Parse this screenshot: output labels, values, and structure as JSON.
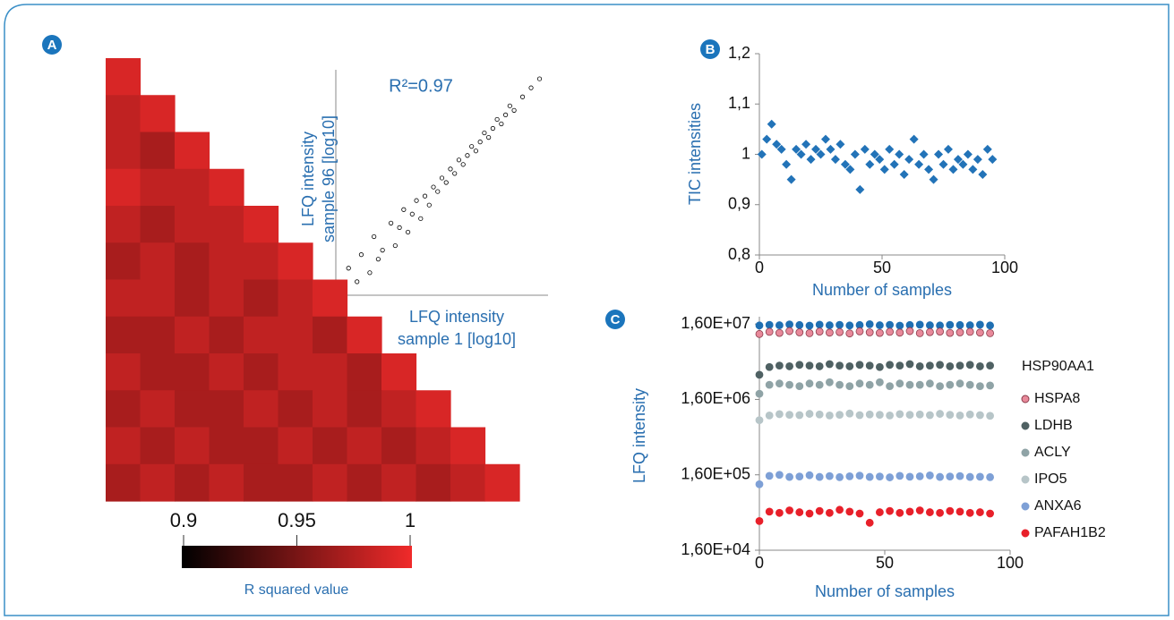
{
  "chart_data": [
    {
      "type": "heatmap",
      "panel": "A",
      "values": [
        [
          0.99
        ],
        [
          0.98,
          0.99
        ],
        [
          0.98,
          0.97,
          0.99
        ],
        [
          0.99,
          0.98,
          0.98,
          0.99
        ],
        [
          0.98,
          0.97,
          0.98,
          0.98,
          0.99
        ],
        [
          0.97,
          0.98,
          0.97,
          0.98,
          0.98,
          0.99
        ],
        [
          0.98,
          0.98,
          0.97,
          0.98,
          0.97,
          0.98,
          0.99
        ],
        [
          0.97,
          0.97,
          0.98,
          0.97,
          0.98,
          0.98,
          0.97,
          0.99
        ],
        [
          0.98,
          0.97,
          0.97,
          0.98,
          0.97,
          0.98,
          0.98,
          0.97,
          0.99
        ],
        [
          0.97,
          0.98,
          0.97,
          0.97,
          0.98,
          0.97,
          0.98,
          0.97,
          0.98,
          0.99
        ],
        [
          0.98,
          0.97,
          0.98,
          0.97,
          0.97,
          0.98,
          0.97,
          0.98,
          0.97,
          0.98,
          0.99
        ],
        [
          0.97,
          0.98,
          0.97,
          0.98,
          0.97,
          0.97,
          0.98,
          0.97,
          0.98,
          0.97,
          0.98,
          0.99
        ]
      ],
      "colormap": [
        "#000000",
        "#f02a2a"
      ],
      "zlim": [
        0.9,
        1
      ],
      "zticks": [
        0.9,
        0.95,
        1
      ],
      "colorbar_label": "R squared value"
    },
    {
      "type": "scatter",
      "annotation": "R²=0.97",
      "xlabel": [
        "LFQ intensity",
        "sample 1 [log10]"
      ],
      "ylabel": [
        "LFQ intensity",
        "sample 96 [log10]"
      ],
      "x": [
        5.8,
        6.0,
        6.1,
        6.3,
        6.4,
        6.5,
        6.6,
        6.8,
        6.9,
        7.0,
        7.1,
        7.2,
        7.3,
        7.4,
        7.5,
        7.6,
        7.7,
        7.8,
        7.9,
        8.0,
        8.1,
        8.2,
        8.3,
        8.4,
        8.5,
        8.6,
        8.7,
        8.8,
        8.9,
        9.0,
        9.1,
        9.2,
        9.3,
        9.4,
        9.5,
        9.6,
        9.7,
        9.9,
        10.1,
        10.3
      ],
      "y": [
        6.1,
        5.8,
        6.4,
        6.0,
        6.8,
        6.3,
        6.5,
        7.1,
        6.6,
        7.0,
        7.4,
        6.9,
        7.3,
        7.6,
        7.2,
        7.7,
        7.5,
        7.9,
        7.8,
        8.1,
        8.0,
        8.3,
        8.2,
        8.5,
        8.4,
        8.6,
        8.8,
        8.7,
        8.9,
        9.1,
        9.0,
        9.2,
        9.4,
        9.3,
        9.5,
        9.7,
        9.6,
        9.9,
        10.1,
        10.3
      ],
      "xlim": [
        5.5,
        10.5
      ],
      "ylim": [
        5.5,
        10.5
      ],
      "color": "#000000",
      "marker": "circle-open"
    },
    {
      "type": "scatter",
      "panel": "B",
      "ylabel": "TIC intensities",
      "xlabel": "Number of samples",
      "x": [
        1,
        3,
        5,
        7,
        9,
        11,
        13,
        15,
        17,
        19,
        21,
        23,
        25,
        27,
        29,
        31,
        33,
        35,
        37,
        39,
        41,
        43,
        45,
        47,
        49,
        51,
        53,
        55,
        57,
        59,
        61,
        63,
        65,
        67,
        69,
        71,
        73,
        75,
        77,
        79,
        81,
        83,
        85,
        87,
        89,
        91,
        93,
        95
      ],
      "y": [
        1.0,
        1.03,
        1.06,
        1.02,
        1.01,
        0.98,
        0.95,
        1.01,
        1.0,
        1.02,
        0.99,
        1.01,
        1.0,
        1.03,
        1.01,
        0.99,
        1.02,
        0.98,
        0.97,
        1.0,
        0.93,
        1.01,
        0.98,
        1.0,
        0.99,
        0.97,
        1.01,
        0.98,
        1.0,
        0.96,
        0.99,
        1.03,
        0.98,
        1.0,
        0.97,
        0.95,
        1.0,
        0.98,
        1.01,
        0.97,
        0.99,
        0.98,
        1.0,
        0.97,
        0.99,
        0.96,
        1.01,
        0.99
      ],
      "xlim": [
        0,
        100
      ],
      "xticks": [
        0,
        50,
        100
      ],
      "ylim": [
        0.8,
        1.2
      ],
      "yticks": [
        {
          "value": 0.8,
          "label": "0,8"
        },
        {
          "value": 0.9,
          "label": "0,9"
        },
        1,
        {
          "value": 1.1,
          "label": "1,1"
        },
        {
          "value": 1.2,
          "label": "1,2"
        }
      ],
      "color": "#2273b8",
      "marker": "diamond"
    },
    {
      "type": "scatter",
      "panel": "C",
      "ylabel": "LFQ intensity",
      "xlabel": "Number of samples",
      "yscale": "log",
      "x": [
        0,
        4,
        8,
        12,
        16,
        20,
        24,
        28,
        32,
        36,
        40,
        44,
        48,
        52,
        56,
        60,
        64,
        68,
        72,
        76,
        80,
        84,
        88,
        92
      ],
      "xlim": [
        0,
        100
      ],
      "xticks": [
        0,
        50,
        100
      ],
      "ylim": [
        16000,
        20000000
      ],
      "yticks": [
        {
          "value": 16000,
          "label": "1,60E+04"
        },
        {
          "value": 160000,
          "label": "1,60E+05"
        },
        {
          "value": 1600000,
          "label": "1,60E+06"
        },
        {
          "value": 16000000,
          "label": "1,60E+07"
        }
      ],
      "marker": "circle",
      "series": [
        {
          "name": "HSP90AA1",
          "color": "#1f6fb2",
          "values": [
            15300000,
            15600000,
            15400000,
            15800000,
            15500000,
            15200000,
            15700000,
            15400000,
            15600000,
            15300000,
            15500000,
            15900000,
            15400000,
            15600000,
            15200000,
            15500000,
            15700000,
            15400000,
            15300000,
            15600000,
            15500000,
            15400000,
            15700000,
            15300000
          ]
        },
        {
          "name": "HSPA8",
          "color": "#e8899a",
          "edgecolor": "#8a3a4a",
          "values": [
            11800000,
            12600000,
            12200000,
            12900000,
            12400000,
            12100000,
            12700000,
            12300000,
            12500000,
            12000000,
            12800000,
            12400000,
            12200000,
            12600000,
            12300000,
            12900000,
            12100000,
            12500000,
            12700000,
            12200000,
            12400000,
            12600000,
            12300000,
            12100000
          ]
        },
        {
          "name": "LDHB",
          "color": "#4f6163",
          "values": [
            3400000,
            4300000,
            4500000,
            4400000,
            4600000,
            4500000,
            4400000,
            4700000,
            4500000,
            4400000,
            4600000,
            4500000,
            4300000,
            4600000,
            4500000,
            4700000,
            4400000,
            4500000,
            4600000,
            4400000,
            4500000,
            4600000,
            4400000,
            4500000
          ]
        },
        {
          "name": "ACLY",
          "color": "#8fa3a6",
          "values": [
            1900000,
            2500000,
            2600000,
            2500000,
            2400000,
            2600000,
            2500000,
            2700000,
            2500000,
            2400000,
            2600000,
            2500000,
            2700000,
            2400000,
            2600000,
            2500000,
            2500000,
            2600000,
            2400000,
            2500000,
            2600000,
            2500000,
            2400000,
            2450000
          ]
        },
        {
          "name": "IPO5",
          "color": "#b7c5c8",
          "values": [
            850000,
            980000,
            1020000,
            1000000,
            990000,
            1030000,
            1010000,
            980000,
            1000000,
            1040000,
            990000,
            1010000,
            1000000,
            980000,
            1020000,
            1000000,
            1010000,
            990000,
            1030000,
            1000000,
            980000,
            1010000,
            990000,
            970000
          ]
        },
        {
          "name": "ANXA6",
          "color": "#7ea0d6",
          "values": [
            120000,
            155000,
            160000,
            150000,
            152000,
            158000,
            150000,
            154000,
            149000,
            153000,
            156000,
            150000,
            152000,
            148000,
            155000,
            151000,
            153000,
            157000,
            150000,
            152000,
            154000,
            150000,
            151000,
            149000
          ]
        },
        {
          "name": "PAFAH1B2",
          "color": "#e8202a",
          "values": [
            39000,
            52000,
            50000,
            54000,
            51000,
            49000,
            53000,
            50000,
            55000,
            52000,
            49000,
            37000,
            51000,
            53000,
            50000,
            52000,
            54000,
            51000,
            50000,
            53000,
            52000,
            50000,
            51000,
            49000
          ]
        }
      ]
    }
  ]
}
